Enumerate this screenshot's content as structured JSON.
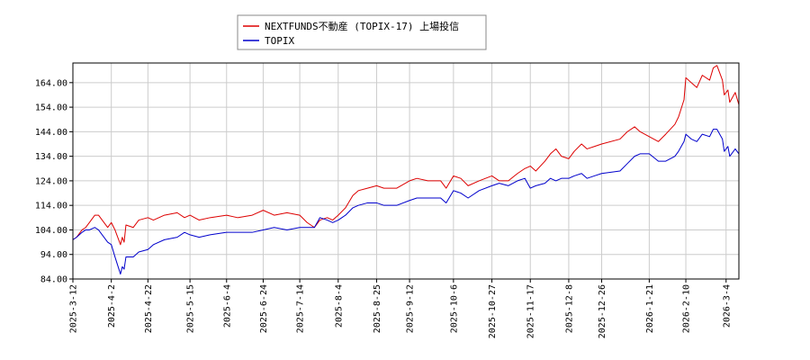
{
  "chart_data": {
    "type": "line",
    "title": "",
    "xlabel": "",
    "ylabel": "",
    "ylim": [
      84.0,
      172.0
    ],
    "yticks": [
      "84.00",
      "94.00",
      "104.00",
      "114.00",
      "124.00",
      "134.00",
      "144.00",
      "154.00",
      "164.00"
    ],
    "xticks": [
      "2025-3-12",
      "2025-4-2",
      "2025-4-22",
      "2025-5-15",
      "2025-6-4",
      "2025-6-24",
      "2025-7-14",
      "2025-8-4",
      "2025-8-25",
      "2025-9-12",
      "2025-10-6",
      "2025-10-27",
      "2025-11-17",
      "2025-12-8",
      "2025-12-26",
      "2026-1-21",
      "2026-2-10",
      "2026-3-4"
    ],
    "grid": true,
    "legend": "top-center",
    "series": [
      {
        "name": "NEXTFUNDS不動産 (TOPIX-17) 上場投信",
        "color": "#dd0000",
        "points": [
          [
            "2025-3-12",
            100.0
          ],
          [
            "2025-3-14",
            101.0
          ],
          [
            "2025-3-17",
            104.0
          ],
          [
            "2025-3-19",
            105.0
          ],
          [
            "2025-3-21",
            107.0
          ],
          [
            "2025-3-24",
            110.0
          ],
          [
            "2025-3-26",
            110.0
          ],
          [
            "2025-3-28",
            108.0
          ],
          [
            "2025-3-31",
            105.0
          ],
          [
            "2025-4-2",
            107.0
          ],
          [
            "2025-4-4",
            104.0
          ],
          [
            "2025-4-7",
            98.0
          ],
          [
            "2025-4-8",
            101.0
          ],
          [
            "2025-4-9",
            99.0
          ],
          [
            "2025-4-10",
            106.0
          ],
          [
            "2025-4-14",
            105.0
          ],
          [
            "2025-4-17",
            108.0
          ],
          [
            "2025-4-22",
            109.0
          ],
          [
            "2025-4-25",
            108.0
          ],
          [
            "2025-5-1",
            110.0
          ],
          [
            "2025-5-8",
            111.0
          ],
          [
            "2025-5-12",
            109.0
          ],
          [
            "2025-5-15",
            110.0
          ],
          [
            "2025-5-20",
            108.0
          ],
          [
            "2025-5-26",
            109.0
          ],
          [
            "2025-6-4",
            110.0
          ],
          [
            "2025-6-10",
            109.0
          ],
          [
            "2025-6-18",
            110.0
          ],
          [
            "2025-6-24",
            112.0
          ],
          [
            "2025-6-30",
            110.0
          ],
          [
            "2025-7-7",
            111.0
          ],
          [
            "2025-7-14",
            110.0
          ],
          [
            "2025-7-18",
            107.0
          ],
          [
            "2025-7-22",
            105.0
          ],
          [
            "2025-7-25",
            108.0
          ],
          [
            "2025-7-29",
            109.0
          ],
          [
            "2025-8-1",
            108.0
          ],
          [
            "2025-8-4",
            110.0
          ],
          [
            "2025-8-8",
            113.0
          ],
          [
            "2025-8-12",
            118.0
          ],
          [
            "2025-8-15",
            120.0
          ],
          [
            "2025-8-20",
            121.0
          ],
          [
            "2025-8-25",
            122.0
          ],
          [
            "2025-8-29",
            121.0
          ],
          [
            "2025-9-5",
            121.0
          ],
          [
            "2025-9-12",
            124.0
          ],
          [
            "2025-9-16",
            125.0
          ],
          [
            "2025-9-22",
            124.0
          ],
          [
            "2025-9-29",
            124.0
          ],
          [
            "2025-10-2",
            121.0
          ],
          [
            "2025-10-6",
            126.0
          ],
          [
            "2025-10-10",
            125.0
          ],
          [
            "2025-10-14",
            122.0
          ],
          [
            "2025-10-20",
            124.0
          ],
          [
            "2025-10-27",
            126.0
          ],
          [
            "2025-10-31",
            124.0
          ],
          [
            "2025-11-5",
            124.0
          ],
          [
            "2025-11-10",
            127.0
          ],
          [
            "2025-11-14",
            129.0
          ],
          [
            "2025-11-17",
            130.0
          ],
          [
            "2025-11-20",
            128.0
          ],
          [
            "2025-11-25",
            132.0
          ],
          [
            "2025-11-28",
            135.0
          ],
          [
            "2025-12-1",
            137.0
          ],
          [
            "2025-12-4",
            134.0
          ],
          [
            "2025-12-8",
            133.0
          ],
          [
            "2025-12-11",
            136.0
          ],
          [
            "2025-12-15",
            139.0
          ],
          [
            "2025-12-18",
            137.0
          ],
          [
            "2025-12-22",
            138.0
          ],
          [
            "2025-12-26",
            139.0
          ],
          [
            "2026-1-5",
            141.0
          ],
          [
            "2026-1-9",
            144.0
          ],
          [
            "2026-1-13",
            146.0
          ],
          [
            "2026-1-16",
            144.0
          ],
          [
            "2026-1-21",
            142.0
          ],
          [
            "2026-1-26",
            140.0
          ],
          [
            "2026-1-30",
            143.0
          ],
          [
            "2026-2-4",
            147.0
          ],
          [
            "2026-2-6",
            150.0
          ],
          [
            "2026-2-9",
            157.0
          ],
          [
            "2026-2-10",
            166.0
          ],
          [
            "2026-2-13",
            164.0
          ],
          [
            "2026-2-16",
            162.0
          ],
          [
            "2026-2-19",
            167.0
          ],
          [
            "2026-2-23",
            165.0
          ],
          [
            "2026-2-25",
            170.0
          ],
          [
            "2026-2-27",
            171.0
          ],
          [
            "2026-3-2",
            165.0
          ],
          [
            "2026-3-3",
            159.0
          ],
          [
            "2026-3-5",
            161.0
          ],
          [
            "2026-3-6",
            156.0
          ],
          [
            "2026-3-9",
            160.0
          ],
          [
            "2026-3-11",
            155.0
          ]
        ]
      },
      {
        "name": "TOPIX",
        "color": "#0000cc",
        "points": [
          [
            "2025-3-12",
            100.0
          ],
          [
            "2025-3-14",
            101.0
          ],
          [
            "2025-3-17",
            103.0
          ],
          [
            "2025-3-19",
            104.0
          ],
          [
            "2025-3-21",
            104.0
          ],
          [
            "2025-3-24",
            105.0
          ],
          [
            "2025-3-26",
            104.0
          ],
          [
            "2025-3-28",
            102.0
          ],
          [
            "2025-3-31",
            99.0
          ],
          [
            "2025-4-2",
            98.0
          ],
          [
            "2025-4-4",
            93.0
          ],
          [
            "2025-4-7",
            86.0
          ],
          [
            "2025-4-8",
            89.0
          ],
          [
            "2025-4-9",
            88.0
          ],
          [
            "2025-4-10",
            93.0
          ],
          [
            "2025-4-14",
            93.0
          ],
          [
            "2025-4-17",
            95.0
          ],
          [
            "2025-4-22",
            96.0
          ],
          [
            "2025-4-25",
            98.0
          ],
          [
            "2025-5-1",
            100.0
          ],
          [
            "2025-5-8",
            101.0
          ],
          [
            "2025-5-12",
            103.0
          ],
          [
            "2025-5-15",
            102.0
          ],
          [
            "2025-5-20",
            101.0
          ],
          [
            "2025-5-26",
            102.0
          ],
          [
            "2025-6-4",
            103.0
          ],
          [
            "2025-6-10",
            103.0
          ],
          [
            "2025-6-18",
            103.0
          ],
          [
            "2025-6-24",
            104.0
          ],
          [
            "2025-6-30",
            105.0
          ],
          [
            "2025-7-7",
            104.0
          ],
          [
            "2025-7-14",
            105.0
          ],
          [
            "2025-7-18",
            105.0
          ],
          [
            "2025-7-22",
            105.0
          ],
          [
            "2025-7-25",
            109.0
          ],
          [
            "2025-7-29",
            108.0
          ],
          [
            "2025-8-1",
            107.0
          ],
          [
            "2025-8-4",
            108.0
          ],
          [
            "2025-8-8",
            110.0
          ],
          [
            "2025-8-12",
            113.0
          ],
          [
            "2025-8-15",
            114.0
          ],
          [
            "2025-8-20",
            115.0
          ],
          [
            "2025-8-25",
            115.0
          ],
          [
            "2025-8-29",
            114.0
          ],
          [
            "2025-9-5",
            114.0
          ],
          [
            "2025-9-12",
            116.0
          ],
          [
            "2025-9-16",
            117.0
          ],
          [
            "2025-9-22",
            117.0
          ],
          [
            "2025-9-29",
            117.0
          ],
          [
            "2025-10-2",
            115.0
          ],
          [
            "2025-10-6",
            120.0
          ],
          [
            "2025-10-10",
            119.0
          ],
          [
            "2025-10-14",
            117.0
          ],
          [
            "2025-10-20",
            120.0
          ],
          [
            "2025-10-27",
            122.0
          ],
          [
            "2025-10-31",
            123.0
          ],
          [
            "2025-11-5",
            122.0
          ],
          [
            "2025-11-10",
            124.0
          ],
          [
            "2025-11-14",
            125.0
          ],
          [
            "2025-11-17",
            121.0
          ],
          [
            "2025-11-20",
            122.0
          ],
          [
            "2025-11-25",
            123.0
          ],
          [
            "2025-11-28",
            125.0
          ],
          [
            "2025-12-1",
            124.0
          ],
          [
            "2025-12-4",
            125.0
          ],
          [
            "2025-12-8",
            125.0
          ],
          [
            "2025-12-11",
            126.0
          ],
          [
            "2025-12-15",
            127.0
          ],
          [
            "2025-12-18",
            125.0
          ],
          [
            "2025-12-22",
            126.0
          ],
          [
            "2025-12-26",
            127.0
          ],
          [
            "2026-1-5",
            128.0
          ],
          [
            "2026-1-9",
            131.0
          ],
          [
            "2026-1-13",
            134.0
          ],
          [
            "2026-1-16",
            135.0
          ],
          [
            "2026-1-21",
            135.0
          ],
          [
            "2026-1-26",
            132.0
          ],
          [
            "2026-1-30",
            132.0
          ],
          [
            "2026-2-4",
            134.0
          ],
          [
            "2026-2-6",
            136.0
          ],
          [
            "2026-2-9",
            140.0
          ],
          [
            "2026-2-10",
            143.0
          ],
          [
            "2026-2-13",
            141.0
          ],
          [
            "2026-2-16",
            140.0
          ],
          [
            "2026-2-19",
            143.0
          ],
          [
            "2026-2-23",
            142.0
          ],
          [
            "2026-2-25",
            145.0
          ],
          [
            "2026-2-27",
            145.0
          ],
          [
            "2026-3-2",
            141.0
          ],
          [
            "2026-3-3",
            136.0
          ],
          [
            "2026-3-5",
            138.0
          ],
          [
            "2026-3-6",
            134.0
          ],
          [
            "2026-3-9",
            137.0
          ],
          [
            "2026-3-11",
            135.0
          ]
        ]
      }
    ]
  }
}
